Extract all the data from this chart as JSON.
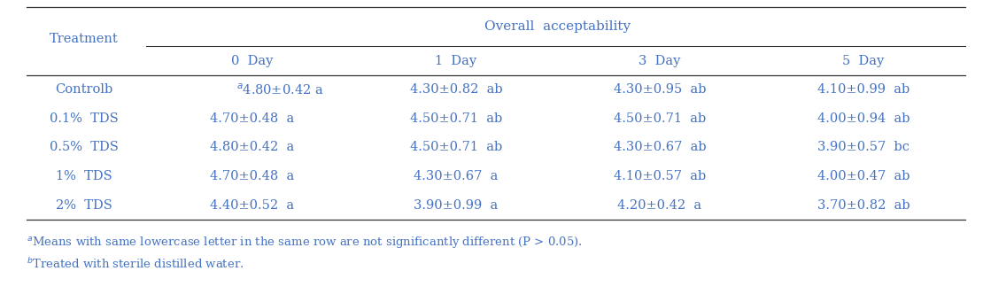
{
  "title": "Overall  acceptability",
  "col_headers": [
    "0  Day",
    "1  Day",
    "3  Day",
    "5  Day"
  ],
  "rows": [
    {
      "treatment": "Controlb",
      "values": [
        "$^a$4.80±0.42 a",
        "4.30±0.82  ab",
        "4.30±0.95  ab",
        "4.10±0.99  ab"
      ],
      "first_has_super": true
    },
    {
      "treatment": "0.1%  TDS",
      "values": [
        "4.70±0.48  a",
        "4.50±0.71  ab",
        "4.50±0.71  ab",
        "4.00±0.94  ab"
      ],
      "first_has_super": false
    },
    {
      "treatment": "0.5%  TDS",
      "values": [
        "4.80±0.42  a",
        "4.50±0.71  ab",
        "4.30±0.67  ab",
        "3.90±0.57  bc"
      ],
      "first_has_super": false
    },
    {
      "treatment": "1%  TDS",
      "values": [
        "4.70±0.48  a",
        "4.30±0.67  a",
        "4.10±0.57  ab",
        "4.00±0.47  ab"
      ],
      "first_has_super": false
    },
    {
      "treatment": "2%  TDS",
      "values": [
        "4.40±0.52  a",
        "3.90±0.99  a",
        "4.20±0.42  a",
        "3.70±0.82  ab"
      ],
      "first_has_super": false
    }
  ],
  "footnote1": "$^a$Means with same lowercase letter in the same row are not significantly different (P > 0.05).",
  "footnote2": "$^b$Treated with sterile distilled water.",
  "text_color": "#4472C4",
  "line_color": "#333333",
  "bg_color": "#FFFFFF",
  "fontsize": 10.5,
  "footnote_fontsize": 9.5
}
